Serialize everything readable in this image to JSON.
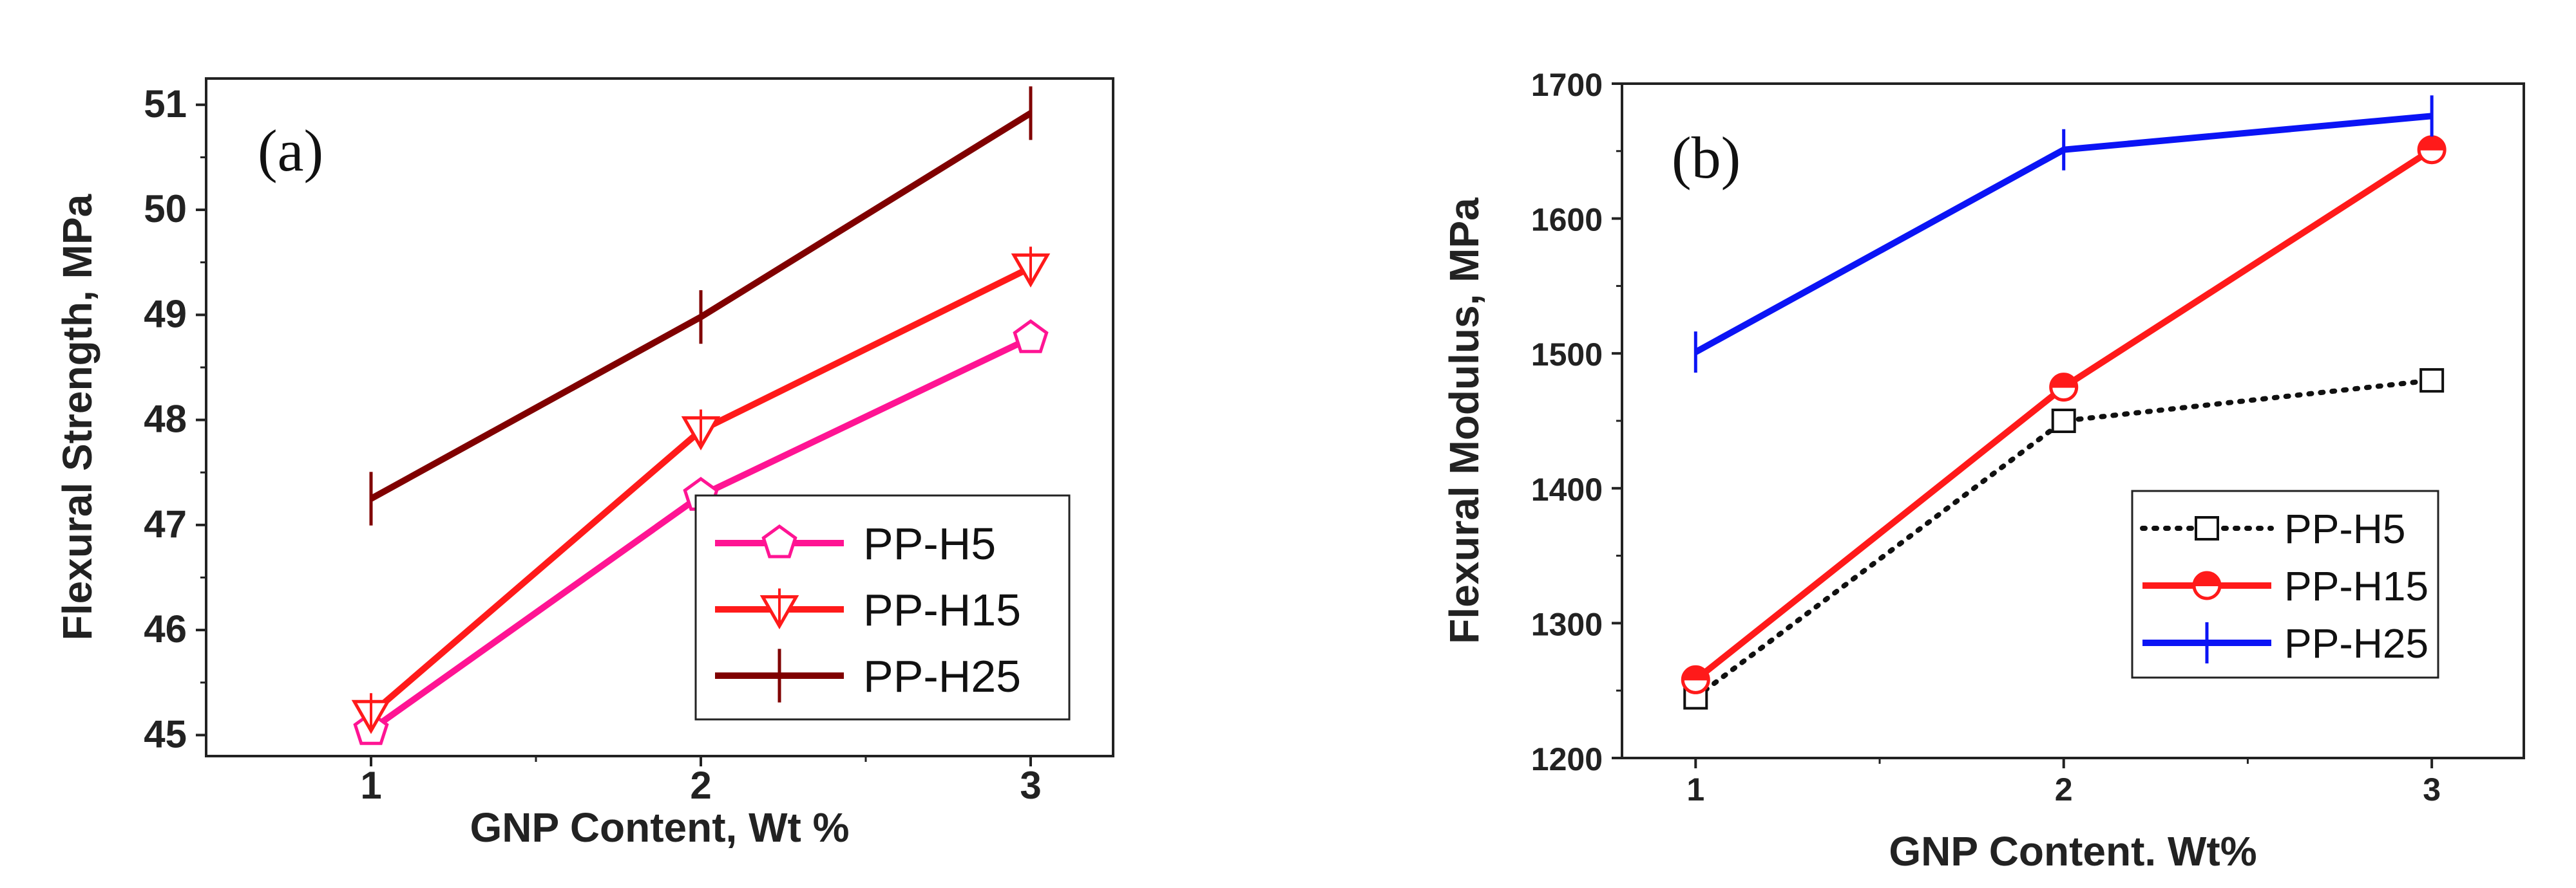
{
  "chart_data": [
    {
      "type": "line",
      "panel_label": "(a)",
      "xlabel": "GNP Content, Wt %",
      "ylabel": "Flexural Strength, MPa",
      "x": [
        1,
        2,
        3
      ],
      "xlim": [
        0.5,
        3.25
      ],
      "ylim": [
        44.8,
        51.25
      ],
      "xticks": [
        1,
        2,
        3
      ],
      "yticks": [
        45,
        46,
        47,
        48,
        49,
        50,
        51
      ],
      "legend_position": "bottom-right",
      "series": [
        {
          "name": "PP-H5",
          "values": [
            45.05,
            47.28,
            48.78
          ],
          "color": "#ff1493",
          "marker": "pentagon",
          "line": "solid"
        },
        {
          "name": "PP-H15",
          "values": [
            45.2,
            47.9,
            49.45
          ],
          "color": "#ff1a1a",
          "marker": "triangle-down",
          "line": "solid"
        },
        {
          "name": "PP-H25",
          "values": [
            47.25,
            48.98,
            50.92
          ],
          "color": "#800000",
          "marker": "vline",
          "line": "solid"
        }
      ]
    },
    {
      "type": "line",
      "panel_label": "(b)",
      "xlabel": "GNP Content. Wt%",
      "ylabel": "Flexural Modulus, MPa",
      "x": [
        1,
        2,
        3
      ],
      "xlim": [
        0.8,
        3.25
      ],
      "ylim": [
        1200,
        1700
      ],
      "xticks": [
        1,
        2,
        3
      ],
      "yticks": [
        1200,
        1300,
        1400,
        1500,
        1600,
        1700
      ],
      "legend_position": "bottom-right",
      "series": [
        {
          "name": "PP-H5",
          "values": [
            1245,
            1450,
            1480
          ],
          "color": "#111111",
          "marker": "square",
          "line": "dotted"
        },
        {
          "name": "PP-H15",
          "values": [
            1258,
            1475,
            1651
          ],
          "color": "#ff1a1a",
          "marker": "half-circle",
          "line": "solid"
        },
        {
          "name": "PP-H25",
          "values": [
            1501,
            1651,
            1676
          ],
          "color": "#0b14f5",
          "marker": "vline",
          "line": "solid"
        }
      ]
    }
  ]
}
